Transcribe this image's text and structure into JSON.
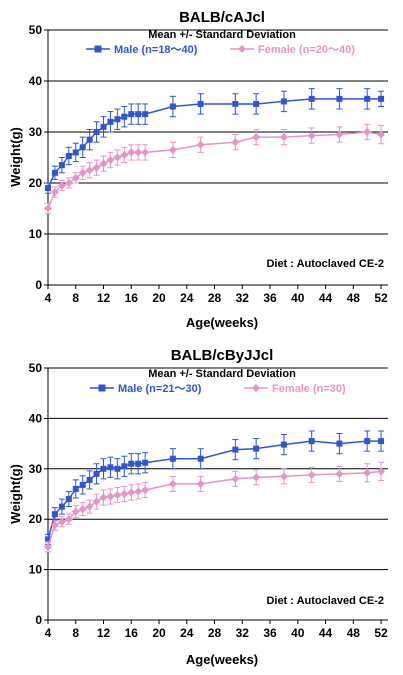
{
  "chart_data": [
    {
      "type": "line",
      "title": "BALB/cAJcl",
      "legend_title": "Mean +/- Standard Deviation",
      "legend_placement": "top",
      "xlabel": "Age(weeks)",
      "ylabel": "Weight(g)",
      "xlim": [
        4,
        53
      ],
      "ylim": [
        0,
        50
      ],
      "xticks": [
        "4",
        "8",
        "12",
        "16",
        "20",
        "24",
        "28",
        "32",
        "36",
        "40",
        "44",
        "48",
        "52"
      ],
      "yticks": [
        "0",
        "10",
        "20",
        "30",
        "40",
        "50"
      ],
      "grid": "horizontal",
      "annotation": "Diet : Autoclaved CE-2",
      "series": [
        {
          "name": "Male (n=18〜40)",
          "color": "#2f55d4",
          "marker": "square",
          "x": [
            4,
            5,
            6,
            7,
            8,
            9,
            10,
            11,
            12,
            13,
            14,
            15,
            16,
            17,
            18,
            22,
            26,
            31,
            34,
            38,
            42,
            46,
            50,
            52
          ],
          "y": [
            19,
            22,
            23.5,
            25.3,
            26,
            27,
            28.5,
            30,
            31,
            32,
            32.5,
            33,
            33.5,
            33.5,
            33.5,
            35,
            35.5,
            35.5,
            35.5,
            36,
            36.5,
            36.5,
            36.5,
            36.5
          ],
          "err": [
            1,
            1.3,
            1.5,
            1.7,
            1.8,
            2,
            2,
            2,
            2,
            2,
            2,
            2,
            2,
            2,
            2,
            2,
            2,
            2,
            2,
            2,
            2,
            2,
            2,
            1.5
          ]
        },
        {
          "name": "Female (n=20〜40)",
          "color": "#e793c8",
          "marker": "diamond",
          "x": [
            4,
            5,
            6,
            7,
            8,
            9,
            10,
            11,
            12,
            13,
            14,
            15,
            16,
            17,
            18,
            22,
            26,
            31,
            34,
            38,
            42,
            46,
            50,
            52
          ],
          "y": [
            15,
            18.2,
            19.5,
            20,
            21,
            22,
            22.5,
            23,
            23.8,
            24.5,
            25,
            25.5,
            26,
            26,
            26,
            26.5,
            27.5,
            28,
            29,
            29,
            29.3,
            29.5,
            30,
            29.5
          ],
          "err": [
            1,
            1,
            1,
            1,
            1,
            1.3,
            1.5,
            1.5,
            1.5,
            1.5,
            1.5,
            1.5,
            1.5,
            1.5,
            1.5,
            1.5,
            1.5,
            1.5,
            1.5,
            1.5,
            1.5,
            1.5,
            1.5,
            1.8
          ]
        }
      ]
    },
    {
      "type": "line",
      "title": "BALB/cByJJcl",
      "legend_title": "Mean +/- Standard Deviation",
      "legend_placement": "top",
      "xlabel": "Age(weeks)",
      "ylabel": "Weight(g)",
      "xlim": [
        4,
        53
      ],
      "ylim": [
        0,
        50
      ],
      "xticks": [
        "4",
        "8",
        "12",
        "16",
        "20",
        "24",
        "28",
        "32",
        "36",
        "40",
        "44",
        "48",
        "52"
      ],
      "yticks": [
        "0",
        "10",
        "20",
        "30",
        "40",
        "50"
      ],
      "grid": "horizontal",
      "annotation": "Diet : Autoclaved CE-2",
      "series": [
        {
          "name": "Male (n=21〜30)",
          "color": "#2f55d4",
          "marker": "square",
          "x": [
            4,
            5,
            6,
            7,
            8,
            9,
            10,
            11,
            12,
            13,
            14,
            15,
            16,
            17,
            18,
            22,
            26,
            31,
            34,
            38,
            42,
            46,
            50,
            52
          ],
          "y": [
            16,
            21,
            22.5,
            24,
            26,
            26.8,
            27.8,
            29,
            30,
            30.3,
            30,
            30.5,
            31,
            31,
            31.2,
            32,
            32,
            33.8,
            34,
            34.8,
            35.5,
            35,
            35.5,
            35.5
          ],
          "err": [
            1,
            1.3,
            1.5,
            1.5,
            1.8,
            1.8,
            1.8,
            2,
            2,
            2,
            2,
            2,
            2,
            2,
            2,
            2,
            2,
            2,
            2,
            2,
            2,
            2,
            2,
            2
          ]
        },
        {
          "name": "Female (n=30)",
          "color": "#e793c8",
          "marker": "diamond",
          "x": [
            4,
            5,
            6,
            7,
            8,
            9,
            10,
            11,
            12,
            13,
            14,
            15,
            16,
            17,
            18,
            22,
            26,
            31,
            34,
            38,
            42,
            46,
            50,
            52
          ],
          "y": [
            14.5,
            18.8,
            19.5,
            20,
            21.5,
            22,
            22.5,
            23.5,
            24.3,
            24.5,
            24.8,
            25,
            25.3,
            25.5,
            25.8,
            27,
            27,
            28,
            28.3,
            28.5,
            28.8,
            29,
            29.2,
            29.5
          ],
          "err": [
            1,
            1,
            1,
            1,
            1.2,
            1.3,
            1.3,
            1.5,
            1.5,
            1.5,
            1.5,
            1.5,
            1.5,
            1.5,
            1.5,
            1.5,
            1.5,
            1.5,
            1.5,
            1.5,
            1.5,
            1.5,
            1.8,
            1.8
          ]
        }
      ]
    }
  ]
}
